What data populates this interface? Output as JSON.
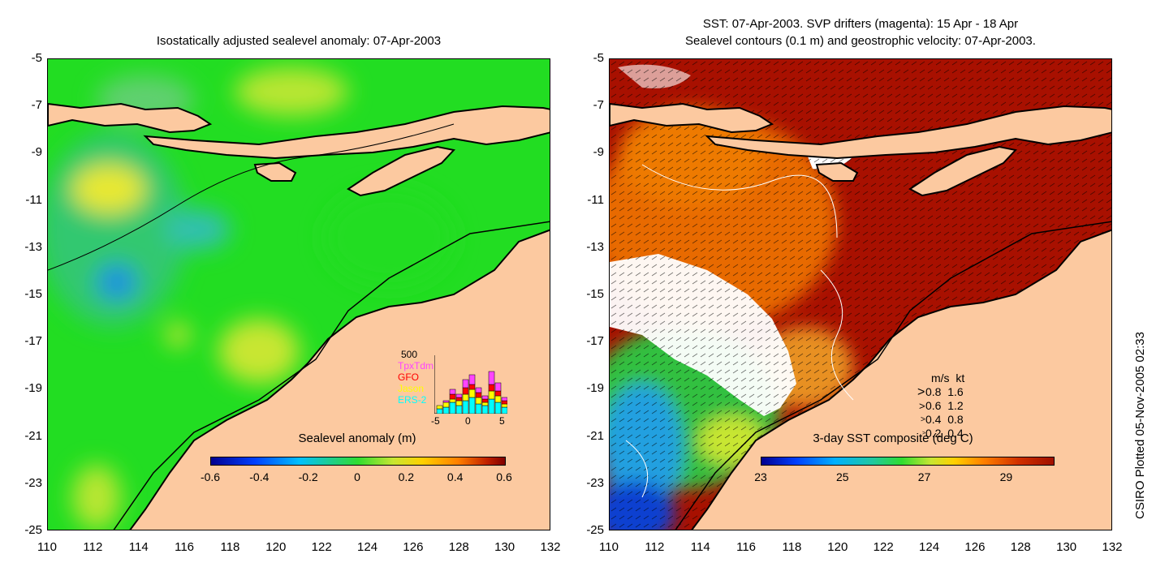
{
  "left_panel": {
    "title": "Isostatically adjusted sealevel anomaly: 07-Apr-2003",
    "colorbar": {
      "label": "Sealevel anomaly (m)",
      "ticks": [
        "-0.6",
        "-0.4",
        "-0.2",
        "0",
        "0.2",
        "0.4",
        "0.6"
      ]
    },
    "inset_histogram": {
      "y_max_label": "500",
      "legend": [
        "TpxTdm",
        "GFO",
        "Jason",
        "ERS-2"
      ],
      "legend_colors": [
        "#ff44ff",
        "#ff0000",
        "#ffff00",
        "#00ffff"
      ],
      "x_ticks": [
        "-5",
        "0",
        "5"
      ]
    }
  },
  "right_panel": {
    "title_line1": "SST: 07-Apr-2003. SVP drifters (magenta): 15 Apr - 18 Apr",
    "title_line2": "Sealevel contours (0.1 m) and geostrophic velocity: 07-Apr-2003.",
    "colorbar": {
      "label": "3-day SST composite (deg C)",
      "ticks": [
        "23",
        "25",
        "27",
        "29"
      ]
    },
    "velocity_legend": {
      "header": "m/s  kt",
      "rows": [
        "0.8  1.6",
        "0.6  1.2",
        "0.4  0.8",
        "0.2  0.4"
      ]
    }
  },
  "axes": {
    "y_ticks": [
      "-5",
      "-7",
      "-9",
      "-11",
      "-13",
      "-15",
      "-17",
      "-19",
      "-21",
      "-23",
      "-25"
    ],
    "x_ticks": [
      "110",
      "112",
      "114",
      "116",
      "118",
      "120",
      "122",
      "124",
      "126",
      "128",
      "130",
      "132"
    ]
  },
  "credit": "CSIRO Plotted 05-Nov-2005 02:33",
  "colors": {
    "land": "#fcc9a0",
    "ocean_green": "#2fe02f",
    "sst_warm": "#a81000",
    "sst_orange": "#e86a00"
  }
}
